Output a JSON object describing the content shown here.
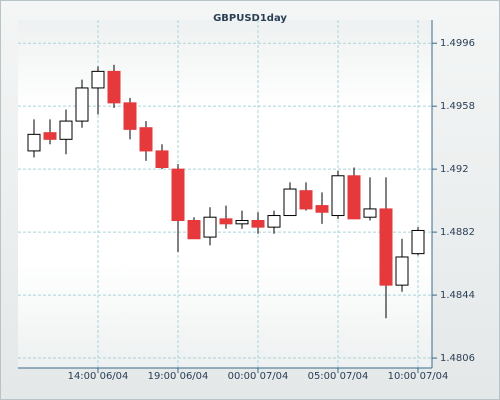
{
  "chart_data": {
    "type": "candlestick",
    "title": "GBPUSD1day",
    "categories": [
      null,
      null,
      null,
      null,
      "14:00 06/04",
      null,
      null,
      null,
      null,
      "19:00 06/04",
      null,
      null,
      null,
      null,
      "00:00 07/04",
      null,
      null,
      null,
      null,
      "05:00 07/04",
      null,
      null,
      null,
      null,
      "10:00 07/04"
    ],
    "open": [
      1.4931,
      1.4942,
      1.4938,
      1.4949,
      1.4969,
      1.4979,
      1.496,
      1.4945,
      1.4931,
      1.492,
      1.4889,
      1.4879,
      1.489,
      1.4887,
      1.4889,
      1.4885,
      1.4892,
      1.4907,
      1.4898,
      1.4892,
      1.4916,
      1.4891,
      1.4896,
      1.485,
      1.4869
    ],
    "high": [
      1.495,
      1.495,
      1.4956,
      1.4974,
      1.4982,
      1.4983,
      1.4963,
      1.4949,
      1.4935,
      1.4923,
      1.4891,
      1.4897,
      1.4898,
      1.4895,
      1.4894,
      1.4895,
      1.4912,
      1.4912,
      1.4906,
      1.4919,
      1.4921,
      1.4915,
      1.4915,
      1.4878,
      1.4885
    ],
    "low": [
      1.4927,
      1.4935,
      1.4929,
      1.4945,
      1.4953,
      1.4957,
      1.4938,
      1.4925,
      1.492,
      1.487,
      1.4878,
      1.4874,
      1.4884,
      1.4884,
      1.4881,
      1.4881,
      1.4892,
      1.4895,
      1.4887,
      1.489,
      1.489,
      1.4889,
      1.483,
      1.4846,
      1.4868
    ],
    "close": [
      1.4941,
      1.4938,
      1.4949,
      1.4969,
      1.4979,
      1.496,
      1.4944,
      1.4931,
      1.4921,
      1.4889,
      1.4878,
      1.4891,
      1.4887,
      1.4889,
      1.4885,
      1.4892,
      1.4908,
      1.4896,
      1.4894,
      1.4916,
      1.489,
      1.4896,
      1.485,
      1.4867,
      1.4883
    ],
    "up_color": "#ffffff",
    "down_color": "#e5393b",
    "ylim": [
      1.48,
      1.501
    ],
    "yticks": [
      1.4806,
      1.4844,
      1.4882,
      1.492,
      1.4958,
      1.4996
    ],
    "grid": true
  }
}
